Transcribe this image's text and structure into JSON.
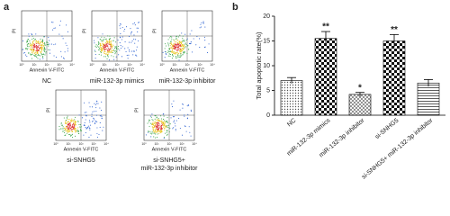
{
  "panel_labels": [
    "a",
    "b"
  ],
  "flow": {
    "x_label": "Annexin V-FITC",
    "y_label": "PI",
    "xtick_labels": [
      "10⁰",
      "10¹",
      "10²",
      "10³",
      "10⁴"
    ],
    "captions": [
      "NC",
      "miR-132-3p mimics",
      "miR-132-3p inhibitor",
      "si-SNHG5",
      "si-SNHG5+",
      "miR-132-3p inhibitor"
    ]
  },
  "chart_data": {
    "type": "bar",
    "ylabel": "Total apoptotic rate(%)",
    "categories": [
      "NC",
      "miR-132-3p mimics",
      "miR-132-3p inhibitor",
      "si-SNHG5",
      "si-SNHG5+ miR-132-3p inhibitor"
    ],
    "values": [
      7.0,
      15.5,
      4.2,
      15.0,
      6.5
    ],
    "errors": [
      0.6,
      1.4,
      0.4,
      1.3,
      0.7
    ],
    "significance": [
      null,
      "**",
      "*",
      "**",
      null
    ],
    "patterns": [
      "dots",
      "checker",
      "cross",
      "checker",
      "lines"
    ],
    "ylim": [
      0,
      20
    ],
    "yticks": [
      0,
      5,
      10,
      15,
      20
    ]
  }
}
